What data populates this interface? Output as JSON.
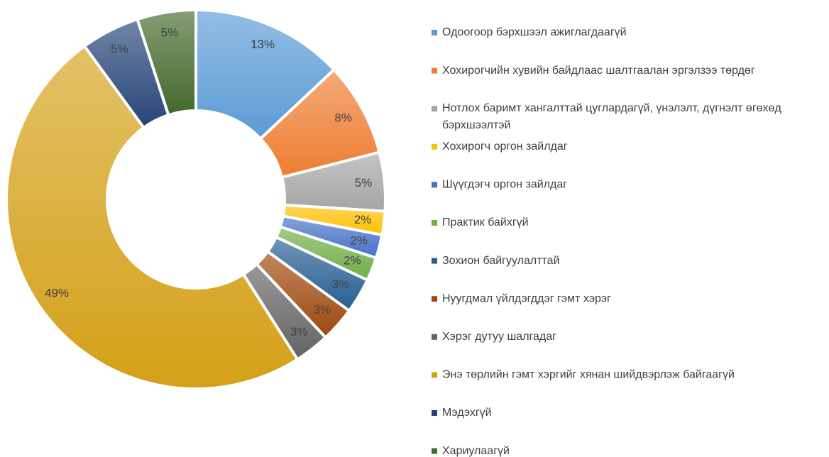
{
  "chart_data": {
    "type": "pie",
    "categories": [
      "Одоогоор бэрхшээл ажиглагдаагүй",
      "Хохирогчийн хувийн байдлаас шалтгаалан эргэлзээ төрдөг",
      "Нотлох баримт хангалттай цуглардагүй, үнэлэлт, дүгнэлт өгөхөд бэрхшээлтэй",
      "Хохирогч оргон зайлдаг",
      "Шүүгдэгч оргон зайлдаг",
      "Практик байхгүй",
      "Зохион байгуулалттай",
      "Нуугдмал үйлдэгддэг гэмт хэрэг",
      "Хэрэг дутуу шалгадаг",
      "Энэ төрлийн гэмт хэргийг хянан шийдвэрлэж байгаагүй",
      "Мэдэхгүй",
      "Хариулаагүй"
    ],
    "values": [
      13,
      8,
      5,
      2,
      2,
      2,
      3,
      3,
      3,
      49,
      5,
      5
    ],
    "value_labels": [
      "13%",
      "8%",
      "5%",
      "2%",
      "2%",
      "2%",
      "3%",
      "3%",
      "3%",
      "49%",
      "5%",
      "5%"
    ],
    "colors": [
      "#5b9bd5",
      "#ed7d31",
      "#a5a5a5",
      "#ffc000",
      "#4472c4",
      "#70ad47",
      "#255e91",
      "#9e480e",
      "#636363",
      "#d4a017",
      "#264478",
      "#43682b"
    ],
    "donut": true,
    "legend": "right"
  }
}
